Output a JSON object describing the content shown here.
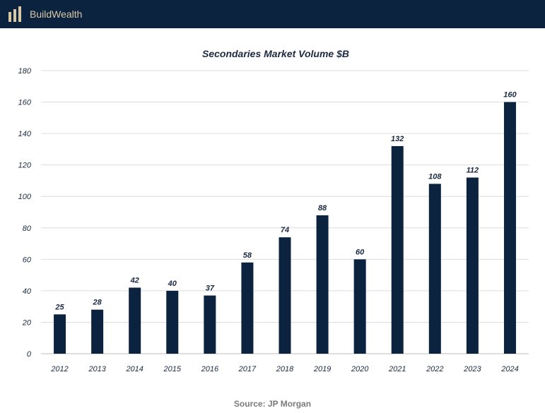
{
  "brand": {
    "name": "BuildWealth",
    "colors": {
      "header_bg": "#0c2340",
      "logo_gold": "#d9c9a3"
    }
  },
  "chart_data": {
    "type": "bar",
    "title": "Secondaries Market Volume $B",
    "categories": [
      "2012",
      "2013",
      "2014",
      "2015",
      "2016",
      "2017",
      "2018",
      "2019",
      "2020",
      "2021",
      "2022",
      "2023",
      "2024"
    ],
    "values": [
      25,
      28,
      42,
      40,
      37,
      58,
      74,
      88,
      60,
      132,
      108,
      112,
      160
    ],
    "ylim": [
      0,
      180
    ],
    "yticks": [
      0,
      20,
      40,
      60,
      80,
      100,
      120,
      140,
      160,
      180
    ],
    "grid": true,
    "bar_color": "#0c2340",
    "data_labels": true
  },
  "source": "Source: JP Morgan"
}
